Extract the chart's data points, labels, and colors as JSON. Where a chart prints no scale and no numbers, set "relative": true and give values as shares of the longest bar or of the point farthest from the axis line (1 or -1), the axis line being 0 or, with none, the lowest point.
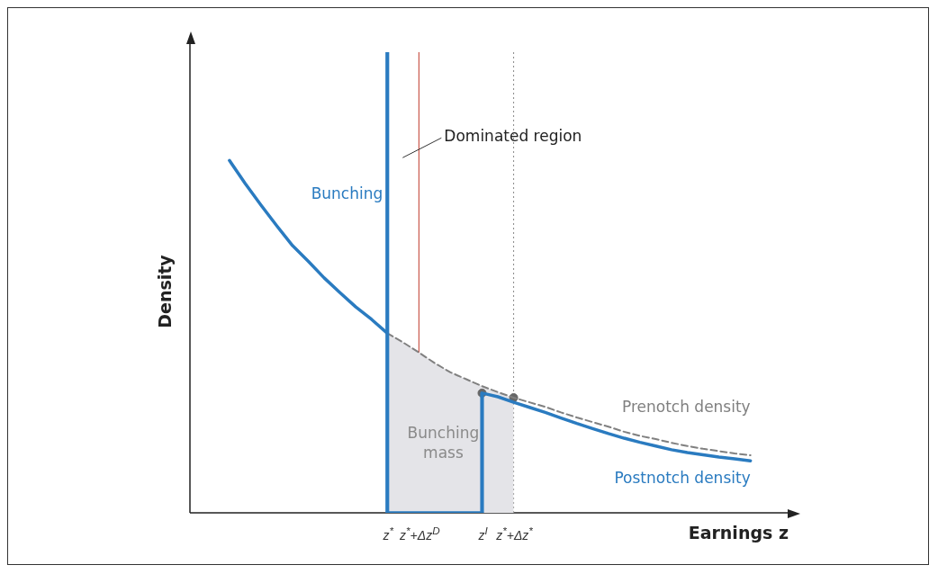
{
  "chart_data": {
    "type": "line",
    "relative": true,
    "xlabel": "Earnings z",
    "ylabel": "Density",
    "categories": [
      null,
      null,
      null,
      null,
      null,
      null,
      null,
      null,
      null,
      null,
      null,
      null,
      "z$^{*}$",
      null,
      "z$^{*}$+Δz$^{D}$",
      null,
      null,
      null,
      "z$^{I}$",
      null,
      "z$^{*}$+Δz$^{*}$",
      null,
      null,
      null,
      null,
      null,
      null,
      null,
      null,
      null,
      null,
      null,
      null,
      null,
      null,
      null,
      null
    ],
    "series": [
      {
        "type": "area",
        "name": "Bunching mass",
        "color": "#e4e4e8",
        "values": [
          null,
          null,
          null,
          null,
          null,
          null,
          null,
          null,
          null,
          null,
          null,
          null,
          0.39,
          0.37,
          0.348,
          0.325,
          0.305,
          0.29,
          0.275,
          0.262,
          0.25,
          null,
          null,
          null,
          null,
          null,
          null,
          null,
          null,
          null,
          null,
          null,
          null,
          null,
          null,
          null,
          null
        ]
      },
      {
        "name": "Prenotch density",
        "color": "#808080",
        "line_style": "dashed",
        "values": [
          null,
          null,
          null,
          null,
          null,
          null,
          null,
          null,
          null,
          null,
          null,
          null,
          0.39,
          0.37,
          0.348,
          0.325,
          0.305,
          0.29,
          0.275,
          0.262,
          0.25,
          0.24,
          0.23,
          0.218,
          0.207,
          0.197,
          0.187,
          0.176,
          0.167,
          0.16,
          0.152,
          0.145,
          0.139,
          0.134,
          0.129,
          0.125,
          null
        ]
      },
      {
        "name": "Postnotch density",
        "color": "#2a7bc0",
        "line_style": "solid",
        "values": [
          null,
          null,
          0.765,
          0.715,
          0.668,
          0.623,
          0.58,
          0.546,
          0.51,
          0.478,
          0.447,
          0.42,
          0.39,
          null,
          null,
          null,
          null,
          null,
          0.26,
          0.252,
          0.24,
          0.229,
          0.218,
          0.206,
          0.194,
          0.183,
          0.172,
          0.162,
          0.153,
          0.145,
          0.137,
          0.131,
          0.126,
          0.121,
          0.117,
          0.113,
          null
        ]
      },
      {
        "color": "#2a7bc0",
        "line_style": "solid",
        "values": [
          null,
          null,
          null,
          null,
          null,
          null,
          null,
          null,
          null,
          null,
          null,
          null,
          0,
          0,
          0,
          0,
          0,
          0,
          0,
          null,
          null,
          null,
          null,
          null,
          null,
          null,
          null,
          null,
          null,
          null,
          null,
          null,
          null,
          null,
          null,
          null,
          null
        ]
      },
      {
        "type": "bar",
        "name": "Bunching",
        "color": "#2a7bc0",
        "values": [
          null,
          null,
          null,
          null,
          null,
          null,
          null,
          null,
          null,
          null,
          null,
          null,
          1.0,
          null,
          null,
          null,
          null,
          null,
          0.26,
          null,
          null,
          null,
          null,
          null,
          null,
          null,
          null,
          null,
          null,
          null,
          null,
          null,
          null,
          null,
          null,
          null,
          null
        ]
      },
      {
        "type": "scatter",
        "color": "#666666",
        "values": [
          null,
          null,
          null,
          null,
          null,
          null,
          null,
          null,
          null,
          null,
          null,
          null,
          null,
          null,
          null,
          null,
          null,
          null,
          0.26,
          null,
          0.25,
          null,
          null,
          null,
          null,
          null,
          null,
          null,
          null,
          null,
          null,
          null,
          null,
          null,
          null,
          null,
          null
        ]
      }
    ],
    "ref_lines": [
      {
        "axis": "x",
        "value": "z$^{*}$+Δz$^{D}$",
        "label": "Dominated region",
        "color": "#c0392b",
        "line_style": "solid"
      },
      {
        "axis": "x",
        "value": "z$^{*}$+Δz$^{*}$",
        "color": "#888888",
        "line_style": "dotted"
      }
    ],
    "legend": false
  }
}
